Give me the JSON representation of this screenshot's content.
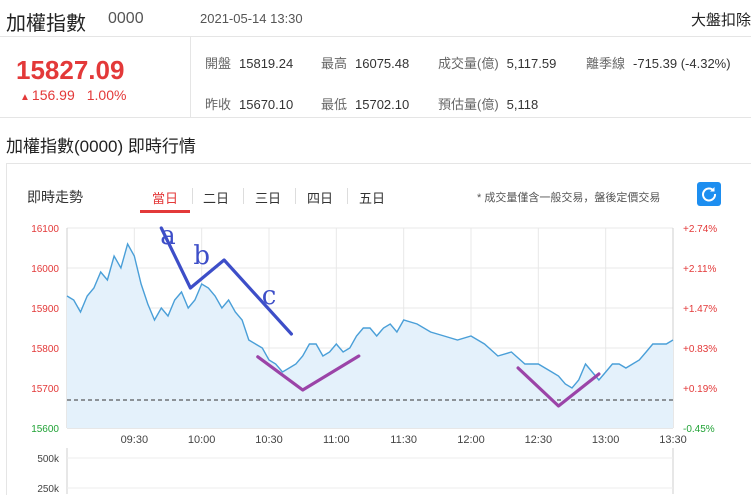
{
  "header": {
    "index_name": "加權指數",
    "index_code": "0000",
    "datetime": "2021-05-14 13:30",
    "right_tag": "大盤扣除"
  },
  "quote": {
    "price": "15827.09",
    "change": "156.99",
    "change_pct": "1.00%",
    "stats": [
      {
        "label": "開盤",
        "value": "15819.24"
      },
      {
        "label": "最高",
        "value": "16075.48"
      },
      {
        "label": "成交量(億)",
        "value": "5,117.59"
      },
      {
        "label": "離季線",
        "value": "-715.39 (-4.32%)"
      },
      {
        "label": "昨收",
        "value": "15670.10"
      },
      {
        "label": "最低",
        "value": "15702.10"
      },
      {
        "label": "預估量(億)",
        "value": "5,118"
      }
    ]
  },
  "section_title": "加權指數(0000) 即時行情",
  "panel": {
    "title": "即時走勢",
    "tabs": [
      "當日",
      "二日",
      "三日",
      "四日",
      "五日"
    ],
    "active_tab": 0,
    "note": "* 成交量僅含一般交易，盤後定價交易"
  },
  "colors": {
    "up": "#e33939",
    "down": "#21a336",
    "line": "#4a9fd8",
    "fill": "#e4f1fb",
    "annot_blue": "#3d4ec8",
    "annot_purple": "#9b44a8"
  },
  "chart_data": {
    "type": "line",
    "title": "",
    "x_ticks": [
      "09:30",
      "10:00",
      "10:30",
      "11:00",
      "11:30",
      "12:00",
      "12:30",
      "13:00",
      "13:30"
    ],
    "xlim": [
      "09:00",
      "13:30"
    ],
    "ylim": [
      15600,
      16100
    ],
    "y_ticks": [
      16100,
      16000,
      15900,
      15800,
      15700,
      15600
    ],
    "y_right_ticks": [
      "+2.74%",
      "+2.11%",
      "+1.47%",
      "+0.83%",
      "+0.19%",
      "-0.45%"
    ],
    "reference_close": 15670.1,
    "series": [
      {
        "x": [
          "09:00",
          "09:03",
          "09:06",
          "09:09",
          "09:12",
          "09:15",
          "09:18",
          "09:21",
          "09:24",
          "09:27",
          "09:30",
          "09:33",
          "09:36",
          "09:39",
          "09:42",
          "09:45",
          "09:48",
          "09:51",
          "09:54",
          "09:57",
          "10:00",
          "10:03",
          "10:06",
          "10:09",
          "10:12",
          "10:15",
          "10:18",
          "10:21",
          "10:24",
          "10:27",
          "10:30",
          "10:33",
          "10:36",
          "10:39",
          "10:42",
          "10:45",
          "10:48",
          "10:51",
          "10:54",
          "10:57",
          "11:00",
          "11:03",
          "11:06",
          "11:09",
          "11:12",
          "11:15",
          "11:18",
          "11:21",
          "11:24",
          "11:27",
          "11:30",
          "11:36",
          "11:42",
          "11:48",
          "11:54",
          "12:00",
          "12:06",
          "12:12",
          "12:18",
          "12:24",
          "12:30",
          "12:36",
          "12:39",
          "12:42",
          "12:45",
          "12:48",
          "12:51",
          "12:54",
          "12:57",
          "13:00",
          "13:03",
          "13:06",
          "13:09",
          "13:12",
          "13:15",
          "13:18",
          "13:21",
          "13:24",
          "13:27",
          "13:30"
        ],
        "y": [
          15930,
          15920,
          15890,
          15930,
          15950,
          15990,
          15970,
          16030,
          16000,
          16060,
          16030,
          15960,
          15910,
          15870,
          15900,
          15880,
          15920,
          15940,
          15900,
          15920,
          15960,
          15950,
          15930,
          15900,
          15920,
          15890,
          15870,
          15820,
          15810,
          15800,
          15770,
          15760,
          15740,
          15750,
          15760,
          15780,
          15810,
          15810,
          15780,
          15790,
          15810,
          15790,
          15800,
          15830,
          15850,
          15850,
          15830,
          15850,
          15860,
          15840,
          15870,
          15860,
          15840,
          15830,
          15820,
          15830,
          15810,
          15780,
          15790,
          15760,
          15760,
          15740,
          15730,
          15710,
          15700,
          15720,
          15760,
          15740,
          15720,
          15740,
          15760,
          15760,
          15750,
          15760,
          15770,
          15790,
          15810,
          15810,
          15810,
          15820
        ]
      }
    ],
    "volume_ticks": [
      "500k",
      "250k"
    ],
    "annotations": [
      {
        "text": "a",
        "x": "09:45",
        "y": 16060
      },
      {
        "text": "b",
        "x": "10:00",
        "y": 16010
      },
      {
        "text": "c",
        "x": "10:30",
        "y": 15910
      }
    ]
  }
}
